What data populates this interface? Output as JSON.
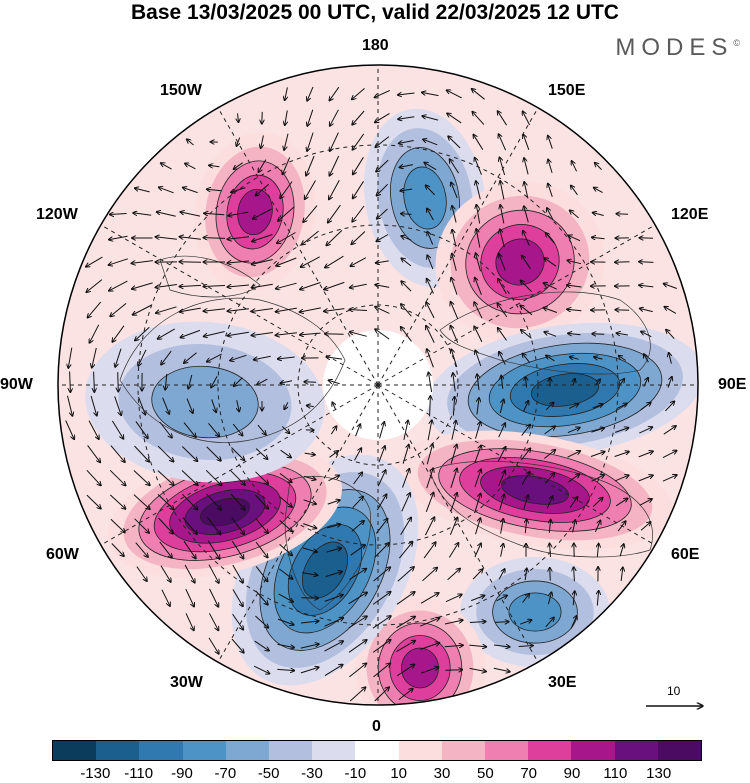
{
  "title": "Base 13/03/2025 00 UTC, valid 22/03/2025 12 UTC",
  "brand": "MODES",
  "brand_mark": "©",
  "longitude_labels": {
    "top": "180",
    "top_left": "150W",
    "top_right": "150E",
    "upper_left": "120W",
    "upper_right": "120E",
    "left": "90W",
    "right": "90E",
    "lower_left": "60W",
    "lower_right": "60E",
    "bottom_left": "30W",
    "bottom_right": "30E",
    "bottom": "0"
  },
  "reference_vector": {
    "label": "10"
  },
  "projection": "north polar stereographic",
  "anomaly_centers": [
    {
      "sign": "positive",
      "near": "150W-180",
      "peak_class": "70 to 90"
    },
    {
      "sign": "negative",
      "near": "150E-180",
      "peak_class": "-90 to -110"
    },
    {
      "sign": "positive",
      "near": "120E",
      "peak_class": "110 to 130"
    },
    {
      "sign": "negative",
      "near": "90E",
      "peak_class": "below -130"
    },
    {
      "sign": "positive",
      "near": "60E-90E",
      "peak_class": "90 to 110"
    },
    {
      "sign": "negative",
      "near": "30E",
      "peak_class": "-70 to -90"
    },
    {
      "sign": "positive",
      "near": "0",
      "peak_class": "70 to 90"
    },
    {
      "sign": "negative",
      "near": "30W",
      "peak_class": "-90 to -110"
    },
    {
      "sign": "positive",
      "near": "60W",
      "peak_class": "110 to 130"
    },
    {
      "sign": "negative",
      "near": "90W",
      "peak_class": "-50 to -70"
    }
  ],
  "colorbar": {
    "ticks": [
      "-130",
      "-110",
      "-90",
      "-70",
      "-50",
      "-30",
      "-10",
      "10",
      "30",
      "50",
      "70",
      "90",
      "110",
      "130"
    ],
    "colors": [
      "#0b3c5c",
      "#1b5f8e",
      "#2f79b0",
      "#4d93c6",
      "#7ea8d1",
      "#b3bfdf",
      "#dcdcef",
      "#ffffff",
      "#fbdedd",
      "#f5b4c4",
      "#ee7fb0",
      "#de3f9c",
      "#a8168c",
      "#6a0f7e",
      "#4b0b63"
    ]
  }
}
